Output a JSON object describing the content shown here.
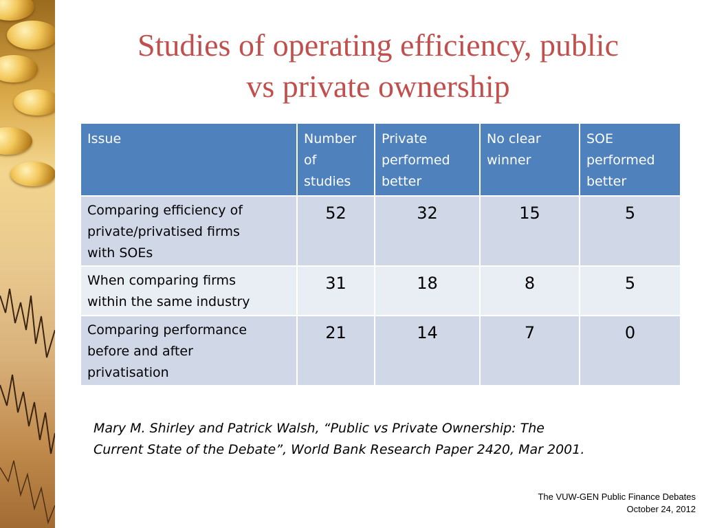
{
  "slide": {
    "title_line1": "Studies of operating efficiency, public",
    "title_line2": "vs private ownership"
  },
  "table": {
    "headers": {
      "issue": "Issue",
      "number_l1": "Number",
      "number_l2": "of",
      "number_l3": "studies",
      "private_l1": "Private",
      "private_l2": "performed",
      "private_l3": "better",
      "noclear_l1": "No clear",
      "noclear_l2": "winner",
      "soe_l1": "SOE",
      "soe_l2": "performed",
      "soe_l3": "better"
    },
    "rows": [
      {
        "issue_l1": "Comparing  efficiency of",
        "issue_l2": "private/privatised firms",
        "issue_l3": "with SOEs",
        "number": "52",
        "private": "32",
        "noclear": "15",
        "soe": "5"
      },
      {
        "issue_l1": "When comparing firms",
        "issue_l2": "within the same industry",
        "number": "31",
        "private": "18",
        "noclear": "8",
        "soe": "5"
      },
      {
        "issue_l1": "Comparing performance",
        "issue_l2": "before and after",
        "issue_l3": "privatisation",
        "number": "21",
        "private": "14",
        "noclear": "7",
        "soe": "0"
      }
    ]
  },
  "citation": {
    "line1": "Mary M. Shirley and Patrick Walsh, “Public vs Private Ownership: The",
    "line2": "Current State of the Debate”, World Bank Research Paper 2420,  Mar 2001."
  },
  "footer": {
    "line1": "The VUW-GEN Public Finance Debates",
    "line2": "October 24, 2012"
  },
  "colors": {
    "title": "#c0504d",
    "header_bg": "#4f81bd",
    "row_odd": "#d0d8e8",
    "row_even": "#e9edf4"
  }
}
